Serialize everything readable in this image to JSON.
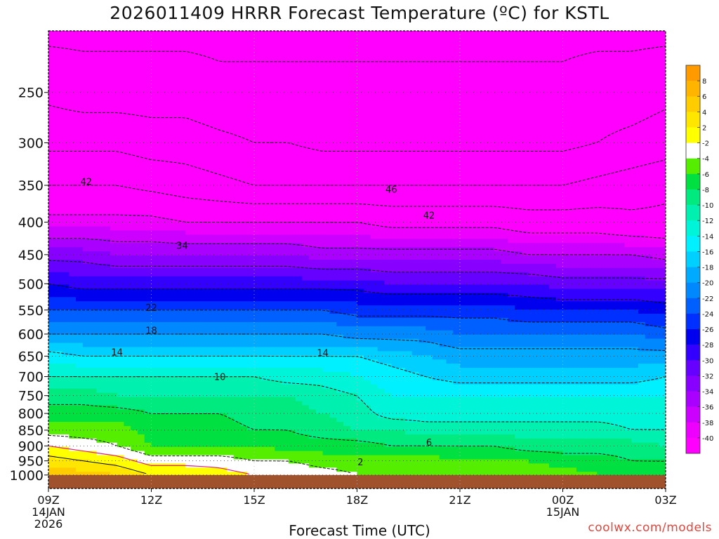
{
  "title": "2026011409 HRRR Forecast Temperature (ºC) for KSTL",
  "credit": "coolwx.com/models",
  "chart_data": {
    "type": "heatmap",
    "title": "2026011409 HRRR Forecast Temperature (ºC) for KSTL",
    "xlabel": "Forecast Time (UTC)",
    "ylabel": "",
    "y_axis": "pressure (hPa), reversed, log scale",
    "ylim": [
      1050,
      200
    ],
    "xlim_hours": [
      0,
      18
    ],
    "x_ticks": [
      {
        "hour": 0,
        "lines": [
          "09Z",
          "14JAN",
          "2026"
        ]
      },
      {
        "hour": 3,
        "lines": [
          "12Z"
        ]
      },
      {
        "hour": 6,
        "lines": [
          "15Z"
        ]
      },
      {
        "hour": 9,
        "lines": [
          "18Z"
        ]
      },
      {
        "hour": 12,
        "lines": [
          "21Z"
        ]
      },
      {
        "hour": 15,
        "lines": [
          "00Z",
          "15JAN"
        ]
      },
      {
        "hour": 18,
        "lines": [
          "03Z"
        ]
      }
    ],
    "y_ticks": [
      250,
      300,
      350,
      400,
      450,
      500,
      550,
      600,
      650,
      700,
      750,
      800,
      850,
      900,
      950,
      1000
    ],
    "x_hours": [
      0,
      1,
      2,
      3,
      4,
      5,
      6,
      7,
      8,
      9,
      10,
      11,
      12,
      13,
      14,
      15,
      16,
      17,
      18
    ],
    "levels": [
      {
        "p": 1000,
        "t": [
          6,
          5,
          4,
          2,
          2,
          1,
          0,
          0,
          -1,
          -2,
          -2,
          -2,
          -2,
          -2,
          -3,
          -3,
          -4,
          -5,
          -5
        ]
      },
      {
        "p": 950,
        "t": [
          3,
          2,
          1,
          -1,
          -1,
          -1,
          -2,
          -2,
          -3,
          -3,
          -3,
          -3,
          -4,
          -4,
          -4,
          -5,
          -5,
          -6,
          -6
        ]
      },
      {
        "p": 900,
        "t": [
          0,
          -1,
          -2,
          -4,
          -4,
          -4,
          -4,
          -5,
          -5,
          -5,
          -6,
          -6,
          -6,
          -6,
          -7,
          -7,
          -7,
          -7,
          -8
        ]
      },
      {
        "p": 850,
        "t": [
          -3,
          -3,
          -3,
          -5,
          -5,
          -5,
          -6,
          -6,
          -7,
          -8,
          -8,
          -9,
          -9,
          -9,
          -9,
          -9,
          -9,
          -10,
          -10
        ]
      },
      {
        "p": 800,
        "t": [
          -5,
          -5,
          -5,
          -6,
          -6,
          -6,
          -7,
          -7,
          -8,
          -9,
          -11,
          -11,
          -11,
          -11,
          -11,
          -11,
          -11,
          -11,
          -11
        ]
      },
      {
        "p": 750,
        "t": [
          -7,
          -7,
          -8,
          -8,
          -8,
          -8,
          -8,
          -8,
          -9,
          -10,
          -12,
          -12,
          -12,
          -12,
          -12,
          -12,
          -12,
          -12,
          -12
        ]
      },
      {
        "p": 700,
        "t": [
          -10,
          -10,
          -10,
          -10,
          -10,
          -10,
          -10,
          -11,
          -11,
          -12,
          -13,
          -14,
          -15,
          -15,
          -15,
          -15,
          -15,
          -15,
          -14
        ]
      },
      {
        "p": 650,
        "t": [
          -13,
          -14,
          -14,
          -14,
          -14,
          -14,
          -14,
          -14,
          -14,
          -14,
          -15,
          -16,
          -17,
          -17,
          -17,
          -17,
          -17,
          -17,
          -17
        ]
      },
      {
        "p": 600,
        "t": [
          -18,
          -18,
          -18,
          -18,
          -18,
          -18,
          -18,
          -18,
          -18,
          -19,
          -19,
          -19,
          -20,
          -20,
          -20,
          -20,
          -20,
          -20,
          -21
        ]
      },
      {
        "p": 550,
        "t": [
          -22,
          -22,
          -22,
          -22,
          -22,
          -22,
          -22,
          -22,
          -22,
          -23,
          -23,
          -23,
          -23,
          -23,
          -24,
          -24,
          -24,
          -24,
          -25
        ]
      },
      {
        "p": 500,
        "t": [
          -26,
          -27,
          -27,
          -27,
          -27,
          -27,
          -27,
          -27,
          -27,
          -27,
          -28,
          -28,
          -28,
          -28,
          -28,
          -29,
          -29,
          -29,
          -29
        ]
      },
      {
        "p": 450,
        "t": [
          -31,
          -31,
          -32,
          -32,
          -32,
          -32,
          -32,
          -32,
          -33,
          -33,
          -33,
          -33,
          -33,
          -33,
          -34,
          -34,
          -34,
          -34,
          -35
        ]
      },
      {
        "p": 400,
        "t": [
          -37,
          -37,
          -37,
          -37,
          -38,
          -38,
          -38,
          -38,
          -38,
          -38,
          -39,
          -39,
          -39,
          -39,
          -40,
          -40,
          -40,
          -41,
          -41
        ]
      },
      {
        "p": 350,
        "t": [
          -42,
          -42,
          -42,
          -43,
          -44,
          -45,
          -46,
          -46,
          -46,
          -46,
          -46,
          -46,
          -46,
          -46,
          -46,
          -46,
          -45,
          -44,
          -43
        ]
      },
      {
        "p": 300,
        "t": [
          -47,
          -47,
          -47,
          -48,
          -48,
          -49,
          -50,
          -50,
          -51,
          -51,
          -51,
          -51,
          -51,
          -51,
          -51,
          -51,
          -50,
          -49,
          -48
        ]
      },
      {
        "p": 250,
        "t": [
          -51,
          -52,
          -52,
          -52,
          -52,
          -53,
          -53,
          -53,
          -53,
          -53,
          -53,
          -53,
          -53,
          -53,
          -53,
          -53,
          -52,
          -52,
          -51
        ]
      },
      {
        "p": 200,
        "t": [
          -55,
          -55,
          -55,
          -55,
          -55,
          -55,
          -55,
          -55,
          -55,
          -55,
          -55,
          -55,
          -55,
          -55,
          -55,
          -55,
          -55,
          -55,
          -55
        ]
      }
    ],
    "surface": {
      "p": 1000,
      "color": "#a0522d"
    },
    "contour_labels": [
      {
        "text": "42",
        "x": 1.1,
        "p": 345
      },
      {
        "text": "46",
        "x": 10.0,
        "p": 355
      },
      {
        "text": "42",
        "x": 11.1,
        "p": 390
      },
      {
        "text": "34",
        "x": 3.9,
        "p": 435
      },
      {
        "text": "22",
        "x": 3.0,
        "p": 545
      },
      {
        "text": "18",
        "x": 3.0,
        "p": 592
      },
      {
        "text": "14",
        "x": 2.0,
        "p": 640
      },
      {
        "text": "14",
        "x": 8.0,
        "p": 642
      },
      {
        "text": "10",
        "x": 5.0,
        "p": 700
      },
      {
        "text": "6",
        "x": 11.1,
        "p": 888
      },
      {
        "text": "2",
        "x": 9.1,
        "p": 953
      }
    ],
    "colorbar": {
      "labels": [
        "8",
        "6",
        "4",
        "2",
        "-2",
        "-4",
        "-6",
        "-8",
        "-10",
        "-12",
        "-14",
        "-16",
        "-18",
        "-20",
        "-22",
        "-24",
        "-26",
        "-28",
        "-30",
        "-32",
        "-34",
        "-36",
        "-38",
        "-40"
      ],
      "colors": [
        "#ff9a00",
        "#ffb400",
        "#ffcc00",
        "#ffe600",
        "#ffff00",
        "#ffffff",
        "#55ee00",
        "#00e040",
        "#00ea80",
        "#00f0b0",
        "#00f5d8",
        "#00f0ff",
        "#00d0ff",
        "#00aaff",
        "#0088ff",
        "#0060ff",
        "#0030ff",
        "#0000ee",
        "#3300ff",
        "#6600ff",
        "#8800ff",
        "#aa00ff",
        "#cc00ff",
        "#ee00ff",
        "#ff00ff"
      ]
    },
    "grid": true,
    "legend": "right (colorbar)"
  }
}
